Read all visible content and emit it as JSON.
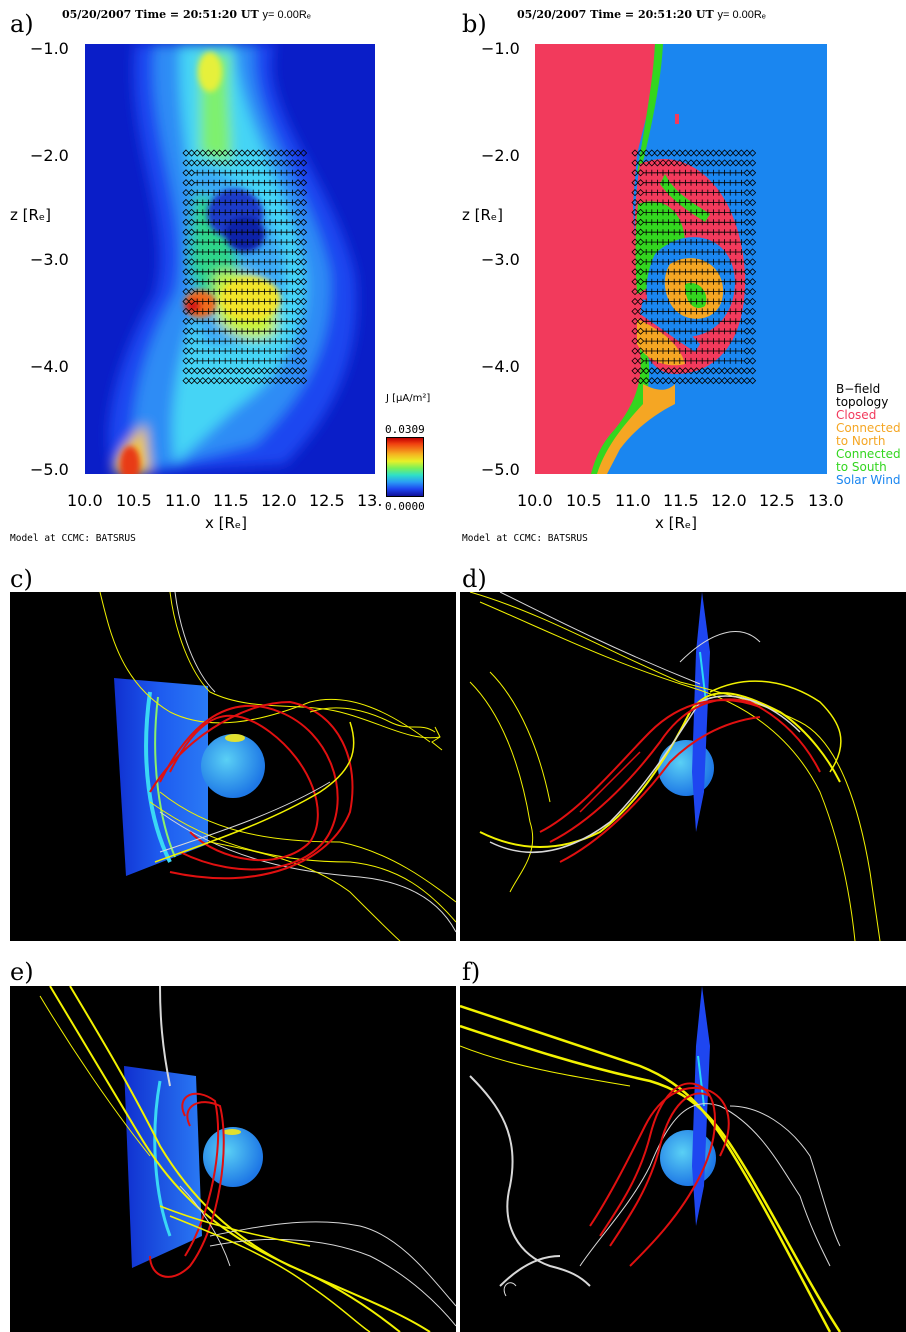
{
  "panels": {
    "a": {
      "label": "a)",
      "header_main": "05/20/2007 Time = 20:51:20 UT",
      "header_y": "y= 0.00Rₑ",
      "credit": "Model at CCMC: BATSRUS"
    },
    "b": {
      "label": "b)",
      "header_main": "05/20/2007 Time = 20:51:20 UT",
      "header_y": "y= 0.00Rₑ",
      "credit": "Model at CCMC: BATSRUS"
    },
    "c": {
      "label": "c)"
    },
    "d": {
      "label": "d)"
    },
    "e": {
      "label": "e)"
    },
    "f": {
      "label": "f)"
    }
  },
  "axes": {
    "y_label": "z [Rₑ]",
    "x_label": "x [Rₑ]",
    "y_ticks": [
      "−1.0",
      "−2.0",
      "−3.0",
      "−4.0",
      "−5.0"
    ],
    "x_ticks_a": [
      "10.0",
      "10.5",
      "11.0",
      "11.5",
      "12.0",
      "12.5",
      "13."
    ],
    "x_ticks_b": [
      "10.0",
      "10.5",
      "11.0",
      "11.5",
      "12.0",
      "12.5",
      "13.0"
    ],
    "xlim": [
      10.0,
      13.0
    ],
    "ylim": [
      -5.0,
      -1.0
    ]
  },
  "colorbar": {
    "title": "J [μA/m²]",
    "max": "0.0309",
    "min": "0.0000"
  },
  "legend": {
    "title_line1": "B−field",
    "title_line2": "topology",
    "items": [
      {
        "line1": "Closed",
        "line2": "",
        "color": "#f23a5c"
      },
      {
        "line1": "Connected",
        "line2": "to North",
        "color": "#f5a623"
      },
      {
        "line1": "Connected",
        "line2": "to South",
        "color": "#33d61f"
      },
      {
        "line1": "Solar Wind",
        "line2": "",
        "color": "#1a86f0"
      }
    ]
  },
  "colors": {
    "current_low": "#0a1ec8",
    "current_high": "#c00000",
    "closed": "#f23a5c",
    "north": "#f5a623",
    "south": "#33d61f",
    "solar_wind": "#1a86f0",
    "field_line_red": "#e01010",
    "field_line_yellow": "#f2f200",
    "field_line_white": "#d8d8d8"
  }
}
